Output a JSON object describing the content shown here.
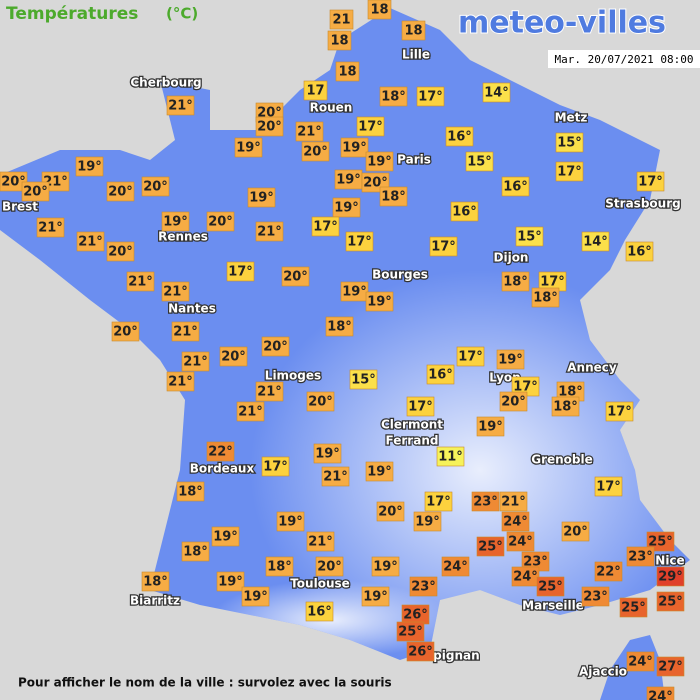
{
  "header": {
    "title": "Températures",
    "unit": "(°C)",
    "logo": "meteo-villes",
    "datetime": "Mar. 20/07/2021 08:00"
  },
  "cities": [
    "Cherbourg",
    "Lille",
    "Rouen",
    "Paris",
    "Metz",
    "Strasbourg",
    "Brest",
    "Rennes",
    "Dijon",
    "Bourges",
    "Nantes",
    "Annecy",
    "Lyon",
    "Limoges",
    "Clermont",
    "Ferrand",
    "Grenoble",
    "Bordeaux",
    "Toulouse",
    "Marseille",
    "Nice",
    "Biarritz",
    "Perpignan",
    "Ajaccio"
  ],
  "temperatures": [
    "18",
    "21",
    "18",
    "18",
    "18",
    "17",
    "18°",
    "17°",
    "14°",
    "21°",
    "20°",
    "20°",
    "21°",
    "17°",
    "16°",
    "15°",
    "19°",
    "20°",
    "19°",
    "19°",
    "15°",
    "17°",
    "19°",
    "20°",
    "21°",
    "20°",
    "20°",
    "20°",
    "19°",
    "20°",
    "16°",
    "17°",
    "19°",
    "18°",
    "19°",
    "21°",
    "19°",
    "20°",
    "21°",
    "17°",
    "16°",
    "15°",
    "14°",
    "16°",
    "21°",
    "20°",
    "17°",
    "17°",
    "17°",
    "20°",
    "21°",
    "21°",
    "18°",
    "17°",
    "18°",
    "19°",
    "19°",
    "20°",
    "18°",
    "21°",
    "20°",
    "17°",
    "19°",
    "21°",
    "20°",
    "21°",
    "15°",
    "16°",
    "17°",
    "18°",
    "18°",
    "17°",
    "21°",
    "20°",
    "21°",
    "20°",
    "17°",
    "19°",
    "22°",
    "11°",
    "19°",
    "21°",
    "19°",
    "18°",
    "17°",
    "17°",
    "17°",
    "23°",
    "21°",
    "20°",
    "19°",
    "19°",
    "24°",
    "20°",
    "19°",
    "21°",
    "24°",
    "25°",
    "25°",
    "23°",
    "18°",
    "23°",
    "24°",
    "18°",
    "20°",
    "19°",
    "22°",
    "29°",
    "24°",
    "18°",
    "19°",
    "25°",
    "23°",
    "23°",
    "19°",
    "19°",
    "25°",
    "25°",
    "16°",
    "26°",
    "25°",
    "26°",
    "24°",
    "27°",
    "24°"
  ],
  "footer": "Pour afficher le nom de la ville : survolez avec la souris"
}
